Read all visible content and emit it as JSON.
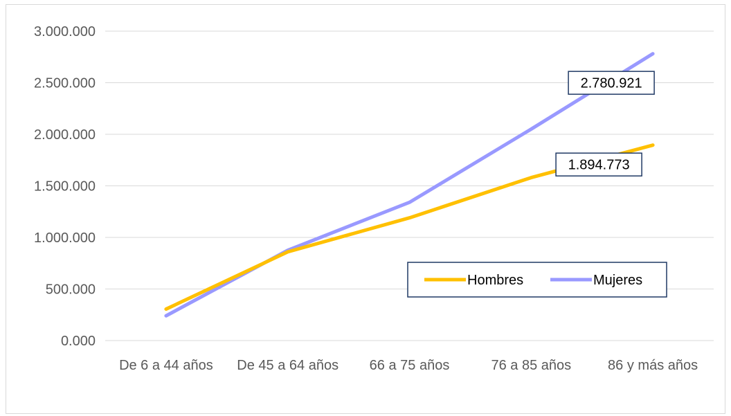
{
  "chart_data": {
    "type": "line",
    "title": "",
    "xlabel": "",
    "ylabel": "",
    "categories": [
      "De 6 a 44 años",
      "De 45 a 64 años",
      "66 a 75 años",
      "76 a 85 años",
      "86 y más años"
    ],
    "ylim": [
      0,
      3000000
    ],
    "yticks": [
      0,
      500000,
      1000000,
      1500000,
      2000000,
      2500000,
      3000000
    ],
    "ytick_labels": [
      "0.000",
      "500.000",
      "1.000.000",
      "1.500.000",
      "2.000.000",
      "2.500.000",
      "3.000.000"
    ],
    "grid": true,
    "legend_position": "inside-right",
    "series": [
      {
        "name": "Hombres",
        "color": "#FFC000",
        "values": [
          305000,
          860000,
          1190000,
          1580000,
          1894773
        ],
        "end_label": "1.894.773"
      },
      {
        "name": "Mujeres",
        "color": "#9999FF",
        "values": [
          240000,
          875000,
          1340000,
          2050000,
          2780921
        ],
        "end_label": "2.780.921"
      }
    ]
  }
}
